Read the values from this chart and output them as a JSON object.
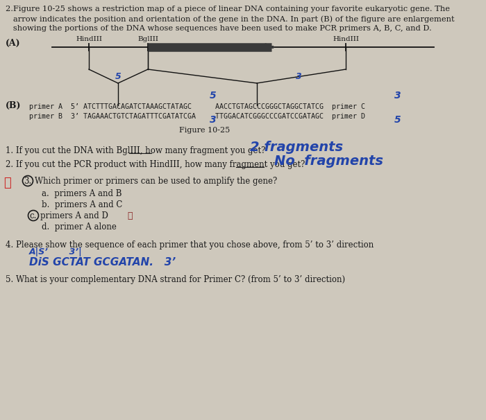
{
  "background_color": "#cec8bc",
  "line1": "2.Figure 10-25 shows a restriction map of a piece of linear DNA containing your favorite eukaryotic gene. The",
  "line2": "   arrow indicates the position and orientation of the gene in the DNA. In part (B) of the figure are enlargement",
  "line3": "   showing the portions of the DNA whose sequences have been used to make PCR primers A, B, C, and D.",
  "A_label": "(A)",
  "hindIII_left": "HindIII",
  "bglIII": "BglIII",
  "hindIII_right": "HindIII",
  "B_label": "(B)",
  "primerA": "primer A  5’ ATCTTTGACAGATCTAAAGCTATAGC",
  "primerC": "AACCTGTAGCCCGGGCTAGGCTATCG  primer C",
  "primerB": "primer B  3’ TAGAAACTGTCTAGATTTCGATATCGA",
  "primerD": "TTGGACATCGGGCCCGATCCGATAGC  primer D",
  "fig_caption": "Figure 10-25",
  "q1": "1. If you cut the DNA with BglIII, how many fragment you get?",
  "q1_hw": "2 fragments",
  "q2": "2. If you cut the PCR product with HindIII, how many fragment you get?",
  "q2_hw": "No  fragments",
  "q3_num": "3.",
  "q3": "Which primer or primers can be used to amplify the gene?",
  "opt_a": "a.  primers A and B",
  "opt_b": "b.  primers A and C",
  "opt_c": "primers A and D",
  "opt_d": "d.  primer A alone",
  "q4": "4. Please show the sequence of each primer that you chose above, from 5’ to 3’ direction",
  "q4_hw1": "A|S’       3’|",
  "q4_hw2": "DiS GCTAT GCGATAN.   3’",
  "q5": "5. What is your complementary DNA strand for Primer C? (from 5’ to 3’ direction)",
  "hand_color": "#2244aa",
  "hand_color2": "#1a3a8a",
  "text_color": "#1a1a1a",
  "x_color": "#cc2222",
  "star_color": "#882222"
}
